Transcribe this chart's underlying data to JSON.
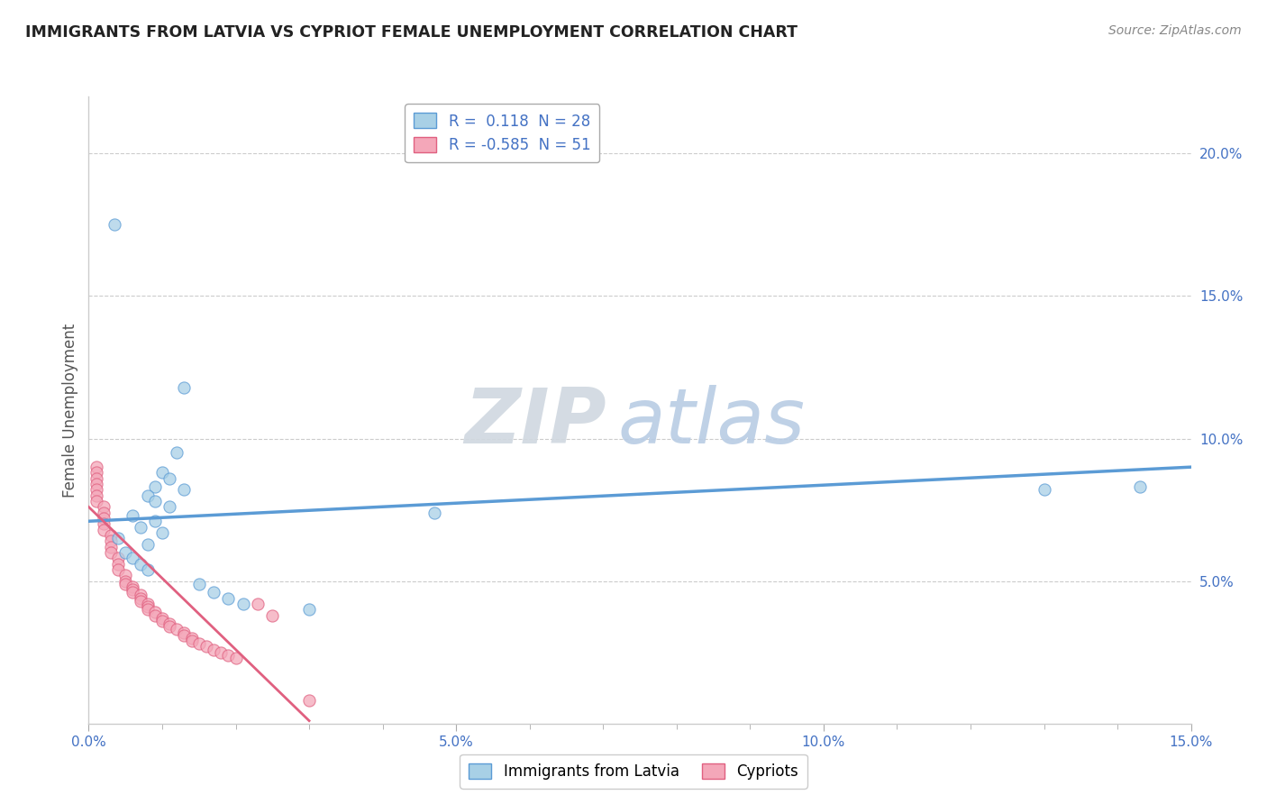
{
  "title": "IMMIGRANTS FROM LATVIA VS CYPRIOT FEMALE UNEMPLOYMENT CORRELATION CHART",
  "source_text": "Source: ZipAtlas.com",
  "ylabel": "Female Unemployment",
  "xlim": [
    0.0,
    0.15
  ],
  "ylim": [
    0.0,
    0.22
  ],
  "xticks": [
    0.0,
    0.05,
    0.1,
    0.15
  ],
  "xtick_labels": [
    "0.0%",
    "5.0%",
    "10.0%",
    "15.0%"
  ],
  "yticks_right": [
    0.05,
    0.1,
    0.15,
    0.2
  ],
  "ytick_right_labels": [
    "5.0%",
    "10.0%",
    "15.0%",
    "20.0%"
  ],
  "watermark_zip": "ZIP",
  "watermark_atlas": "atlas",
  "legend_r1": "R =  0.118  N = 28",
  "legend_r2": "R = -0.585  N = 51",
  "blue_color": "#A8D0E6",
  "pink_color": "#F4A7B9",
  "blue_edge_color": "#5B9BD5",
  "pink_edge_color": "#E06080",
  "blue_scatter": [
    [
      0.0035,
      0.175
    ],
    [
      0.013,
      0.118
    ],
    [
      0.012,
      0.095
    ],
    [
      0.01,
      0.088
    ],
    [
      0.011,
      0.086
    ],
    [
      0.009,
      0.083
    ],
    [
      0.013,
      0.082
    ],
    [
      0.008,
      0.08
    ],
    [
      0.009,
      0.078
    ],
    [
      0.011,
      0.076
    ],
    [
      0.006,
      0.073
    ],
    [
      0.009,
      0.071
    ],
    [
      0.007,
      0.069
    ],
    [
      0.01,
      0.067
    ],
    [
      0.004,
      0.065
    ],
    [
      0.008,
      0.063
    ],
    [
      0.005,
      0.06
    ],
    [
      0.006,
      0.058
    ],
    [
      0.007,
      0.056
    ],
    [
      0.008,
      0.054
    ],
    [
      0.015,
      0.049
    ],
    [
      0.017,
      0.046
    ],
    [
      0.019,
      0.044
    ],
    [
      0.021,
      0.042
    ],
    [
      0.03,
      0.04
    ],
    [
      0.047,
      0.074
    ],
    [
      0.13,
      0.082
    ],
    [
      0.143,
      0.083
    ]
  ],
  "pink_scatter": [
    [
      0.001,
      0.09
    ],
    [
      0.001,
      0.088
    ],
    [
      0.001,
      0.086
    ],
    [
      0.001,
      0.084
    ],
    [
      0.001,
      0.082
    ],
    [
      0.001,
      0.08
    ],
    [
      0.001,
      0.078
    ],
    [
      0.002,
      0.076
    ],
    [
      0.002,
      0.074
    ],
    [
      0.002,
      0.072
    ],
    [
      0.002,
      0.07
    ],
    [
      0.002,
      0.068
    ],
    [
      0.003,
      0.066
    ],
    [
      0.003,
      0.064
    ],
    [
      0.003,
      0.062
    ],
    [
      0.003,
      0.06
    ],
    [
      0.004,
      0.058
    ],
    [
      0.004,
      0.056
    ],
    [
      0.004,
      0.054
    ],
    [
      0.005,
      0.052
    ],
    [
      0.005,
      0.05
    ],
    [
      0.005,
      0.049
    ],
    [
      0.006,
      0.048
    ],
    [
      0.006,
      0.047
    ],
    [
      0.006,
      0.046
    ],
    [
      0.007,
      0.045
    ],
    [
      0.007,
      0.044
    ],
    [
      0.007,
      0.043
    ],
    [
      0.008,
      0.042
    ],
    [
      0.008,
      0.041
    ],
    [
      0.008,
      0.04
    ],
    [
      0.009,
      0.039
    ],
    [
      0.009,
      0.038
    ],
    [
      0.01,
      0.037
    ],
    [
      0.01,
      0.036
    ],
    [
      0.011,
      0.035
    ],
    [
      0.011,
      0.034
    ],
    [
      0.012,
      0.033
    ],
    [
      0.013,
      0.032
    ],
    [
      0.013,
      0.031
    ],
    [
      0.014,
      0.03
    ],
    [
      0.014,
      0.029
    ],
    [
      0.015,
      0.028
    ],
    [
      0.016,
      0.027
    ],
    [
      0.017,
      0.026
    ],
    [
      0.018,
      0.025
    ],
    [
      0.019,
      0.024
    ],
    [
      0.02,
      0.023
    ],
    [
      0.023,
      0.042
    ],
    [
      0.025,
      0.038
    ],
    [
      0.03,
      0.008
    ]
  ],
  "blue_trendline": [
    [
      0.0,
      0.071
    ],
    [
      0.15,
      0.09
    ]
  ],
  "pink_trendline": [
    [
      0.0,
      0.076
    ],
    [
      0.03,
      0.001
    ]
  ],
  "background_color": "#FFFFFF",
  "grid_color": "#CCCCCC",
  "title_color": "#222222",
  "axis_color": "#4472C4",
  "source_color": "#888888"
}
